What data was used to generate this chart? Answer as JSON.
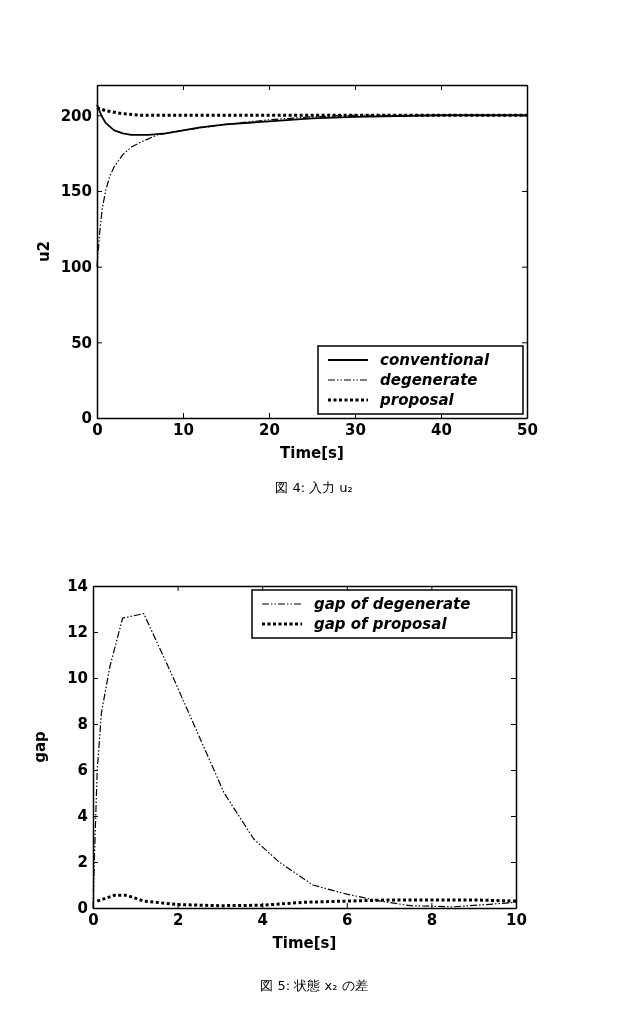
{
  "chart_data": [
    {
      "type": "line",
      "xlabel": "Time[s]",
      "ylabel": "u2",
      "xlim": [
        0,
        50
      ],
      "ylim": [
        0,
        220
      ],
      "xticks": [
        0,
        10,
        20,
        30,
        40,
        50
      ],
      "yticks": [
        0,
        50,
        100,
        150,
        200
      ],
      "grid": false,
      "legend": "bottom right",
      "annotations": [
        "図 4: 入力 u₂"
      ],
      "series": [
        {
          "name": "conventional",
          "color": "#000000",
          "line_style": "solid",
          "x": [
            0,
            0.5,
            1,
            2,
            3,
            4,
            5,
            6,
            7,
            8,
            10,
            12,
            15,
            20,
            25,
            30,
            40,
            50
          ],
          "values": [
            207,
            200,
            195,
            190,
            188,
            187,
            187,
            187,
            187.5,
            188,
            190,
            192,
            194,
            196,
            198,
            199,
            200,
            200
          ]
        },
        {
          "name": "degenerate",
          "color": "#000000",
          "line_style": "dashed",
          "x": [
            0,
            0.3,
            0.6,
            1,
            1.5,
            2,
            3,
            4,
            5,
            7,
            10,
            15,
            20,
            25,
            30,
            40,
            50
          ],
          "values": [
            100,
            122,
            138,
            150,
            160,
            166,
            174,
            179,
            182,
            187,
            190,
            194,
            197,
            199,
            200,
            200,
            200
          ]
        },
        {
          "name": "proposal",
          "color": "#000000",
          "line_style": "dotted",
          "x": [
            0,
            1,
            3,
            5,
            10,
            20,
            30,
            40,
            50
          ],
          "values": [
            205,
            203,
            201,
            200,
            200,
            200,
            200,
            200,
            200
          ]
        }
      ]
    },
    {
      "type": "line",
      "xlabel": "Time[s]",
      "ylabel": "gap",
      "xlim": [
        0,
        10
      ],
      "ylim": [
        0,
        14
      ],
      "xticks": [
        0,
        2,
        4,
        6,
        8,
        10
      ],
      "yticks": [
        0,
        2,
        4,
        6,
        8,
        10,
        12,
        14
      ],
      "grid": false,
      "legend": "top right",
      "annotations": [
        "図 5: 状態 x₂ の差"
      ],
      "series": [
        {
          "name": "gap of degenerate",
          "color": "#000000",
          "line_style": "dashed",
          "x": [
            0,
            0.03,
            0.1,
            0.2,
            0.4,
            0.7,
            1.2,
            1.9,
            2.5,
            3.1,
            3.8,
            4.4,
            5.2,
            6,
            6.8,
            7.5,
            8.5,
            9.3,
            10
          ],
          "values": [
            0,
            2,
            6,
            8.5,
            10.5,
            12.6,
            12.8,
            10,
            7.5,
            5,
            3,
            2,
            1,
            0.6,
            0.3,
            0.1,
            0.05,
            0.15,
            0.25
          ]
        },
        {
          "name": "gap of proposal",
          "color": "#000000",
          "line_style": "dotted",
          "x": [
            0.1,
            0.5,
            0.8,
            1.2,
            2,
            3,
            4,
            5,
            6,
            7,
            8,
            9,
            10
          ],
          "values": [
            0.3,
            0.55,
            0.55,
            0.3,
            0.15,
            0.1,
            0.12,
            0.25,
            0.3,
            0.35,
            0.35,
            0.35,
            0.3
          ]
        }
      ]
    }
  ]
}
